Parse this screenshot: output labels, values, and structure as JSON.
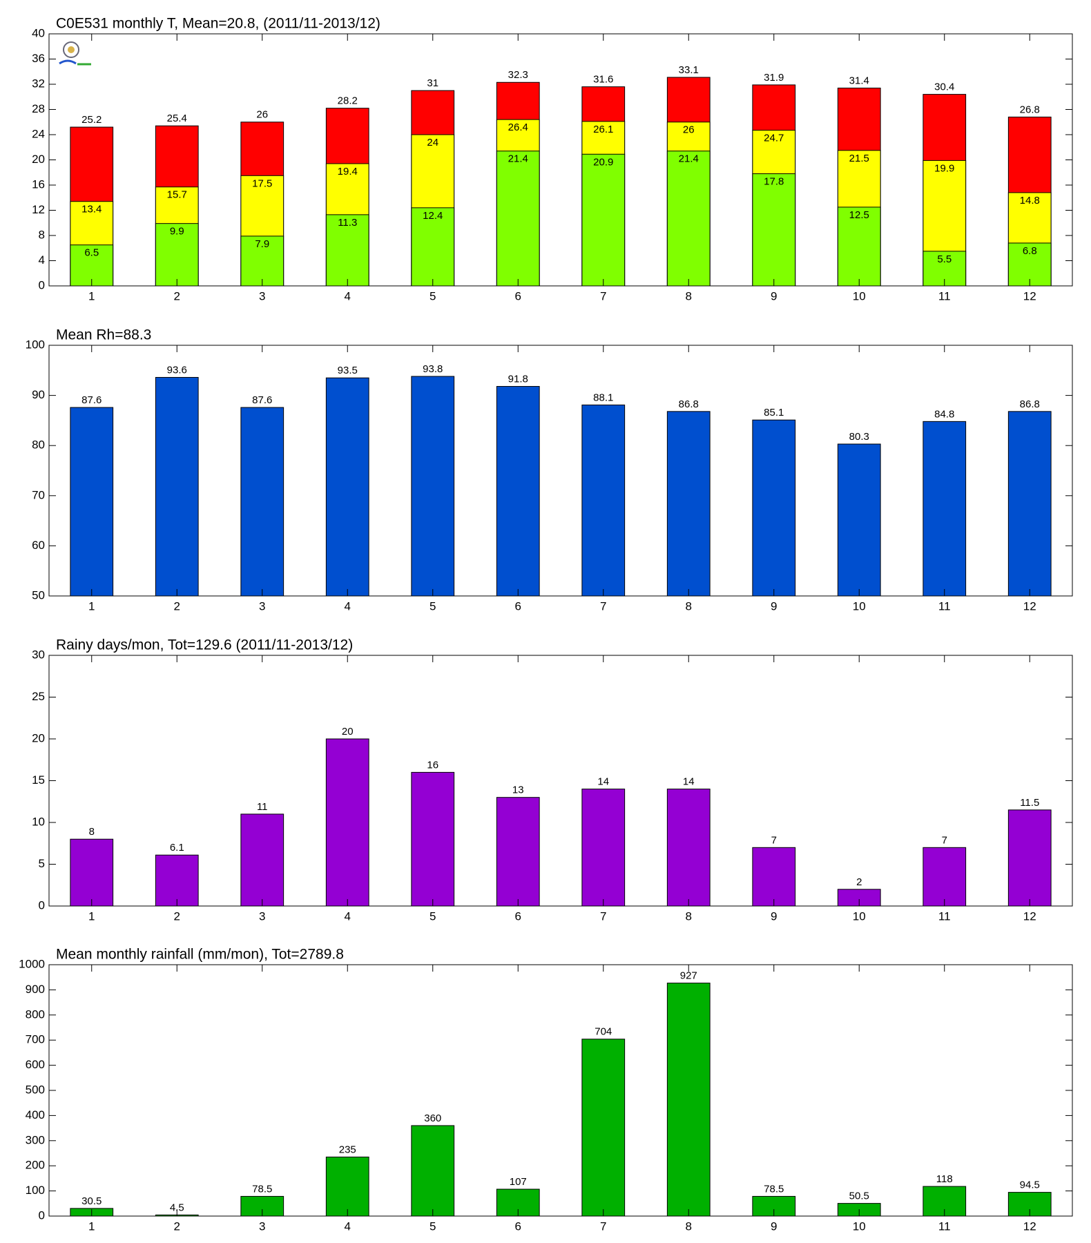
{
  "chart_data": [
    {
      "type": "bar",
      "title": "C0E531 monthly T, Mean=20.8, (2011/11-2013/12)",
      "categories": [
        1,
        2,
        3,
        4,
        5,
        6,
        7,
        8,
        9,
        10,
        11,
        12
      ],
      "series": [
        {
          "color": "#ff0000",
          "values": [
            25.2,
            25.4,
            26,
            28.2,
            31,
            32.3,
            31.6,
            33.1,
            31.9,
            31.4,
            30.4,
            26.8
          ]
        },
        {
          "color": "#ffff00",
          "values": [
            13.4,
            15.7,
            17.5,
            19.4,
            24,
            26.4,
            26.1,
            26,
            24.7,
            21.5,
            19.9,
            14.8
          ]
        },
        {
          "color": "#80ff00",
          "values": [
            6.5,
            9.9,
            7.9,
            11.3,
            12.4,
            21.4,
            20.9,
            21.4,
            17.8,
            12.5,
            5.5,
            6.8
          ]
        }
      ],
      "ylim": [
        0,
        40
      ],
      "yticks": [
        0,
        4,
        8,
        12,
        16,
        20,
        24,
        28,
        32,
        36,
        40
      ]
    },
    {
      "type": "bar",
      "title": "Mean Rh=88.3",
      "categories": [
        1,
        2,
        3,
        4,
        5,
        6,
        7,
        8,
        9,
        10,
        11,
        12
      ],
      "series": [
        {
          "color": "#004fcf",
          "values": [
            87.6,
            93.6,
            87.6,
            93.5,
            93.8,
            91.8,
            88.1,
            86.8,
            85.1,
            80.3,
            84.8,
            86.8
          ]
        }
      ],
      "ylim": [
        50,
        100
      ],
      "yticks": [
        50,
        60,
        70,
        80,
        90,
        100
      ]
    },
    {
      "type": "bar",
      "title": "Rainy days/mon, Tot=129.6 (2011/11-2013/12)",
      "categories": [
        1,
        2,
        3,
        4,
        5,
        6,
        7,
        8,
        9,
        10,
        11,
        12
      ],
      "series": [
        {
          "color": "#9400d3",
          "values": [
            8,
            6.1,
            11,
            20,
            16,
            13,
            14,
            14,
            7,
            2,
            7,
            11.5
          ]
        }
      ],
      "ylim": [
        0,
        30
      ],
      "yticks": [
        0,
        5,
        10,
        15,
        20,
        25,
        30
      ]
    },
    {
      "type": "bar",
      "title": "Mean monthly rainfall (mm/mon), Tot=2789.8",
      "categories": [
        1,
        2,
        3,
        4,
        5,
        6,
        7,
        8,
        9,
        10,
        11,
        12
      ],
      "series": [
        {
          "color": "#00b000",
          "values": [
            30.5,
            4.5,
            78.5,
            235,
            360,
            107,
            704,
            927,
            78.5,
            50.5,
            118,
            94.5
          ]
        }
      ],
      "ylim": [
        0,
        1000
      ],
      "yticks": [
        0,
        100,
        200,
        300,
        400,
        500,
        600,
        700,
        800,
        900,
        1000
      ]
    }
  ]
}
